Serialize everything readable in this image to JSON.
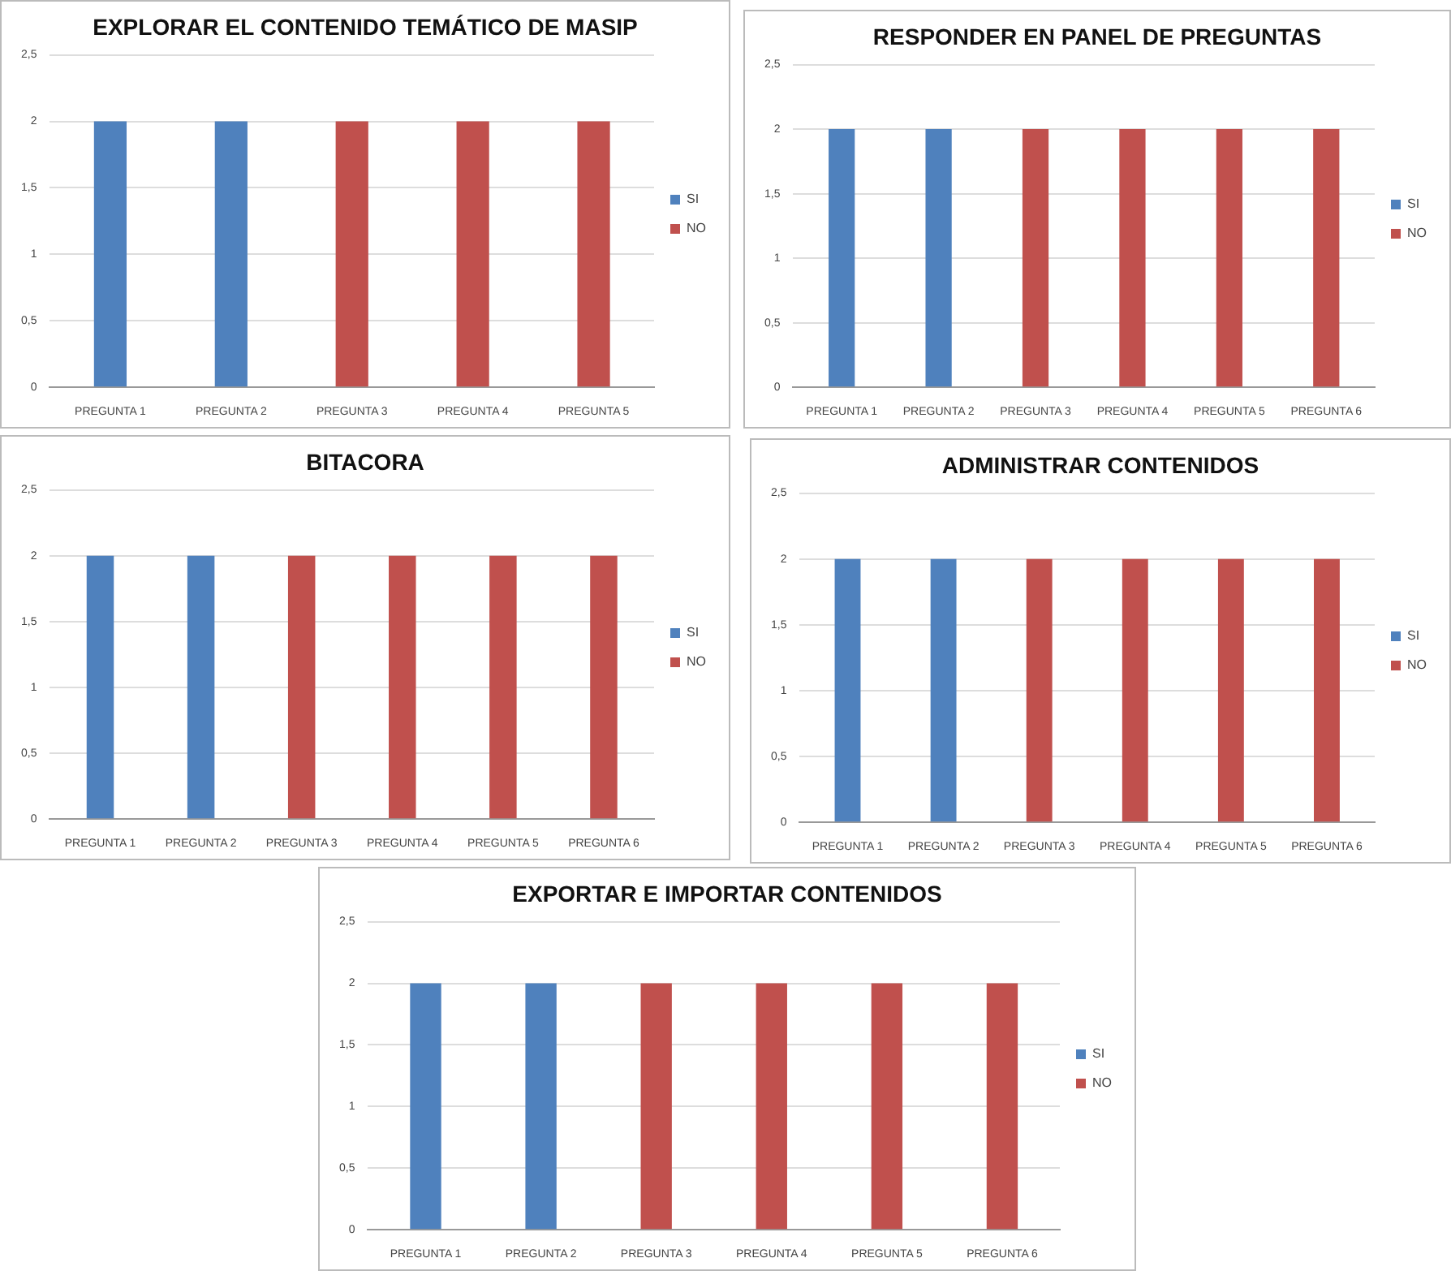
{
  "chart_data": [
    {
      "type": "bar",
      "title": "EXPLORAR EL CONTENIDO TEMÁTICO DE MASIP",
      "categories": [
        "PREGUNTA 1",
        "PREGUNTA 2",
        "PREGUNTA 3",
        "PREGUNTA 4",
        "PREGUNTA 5"
      ],
      "series": [
        {
          "name": "SI",
          "color": "#4f81bd",
          "values": [
            2,
            2,
            null,
            null,
            null
          ]
        },
        {
          "name": "NO",
          "color": "#c0504d",
          "values": [
            null,
            null,
            2,
            2,
            2
          ]
        }
      ],
      "ylim": [
        0,
        2.5
      ],
      "yticks": [
        0,
        {
          "value": 0.5,
          "label": "0,5"
        },
        1,
        {
          "value": 1.5,
          "label": "1,5"
        },
        2,
        {
          "value": 2.5,
          "label": "2,5"
        }
      ],
      "grid": "y",
      "legend": "right"
    },
    {
      "type": "bar",
      "title": "RESPONDER EN PANEL DE PREGUNTAS",
      "categories": [
        "PREGUNTA 1",
        "PREGUNTA 2",
        "PREGUNTA 3",
        "PREGUNTA 4",
        "PREGUNTA 5",
        "PREGUNTA 6"
      ],
      "series": [
        {
          "name": "SI",
          "color": "#4f81bd",
          "values": [
            2,
            2,
            null,
            null,
            null,
            null
          ]
        },
        {
          "name": "NO",
          "color": "#c0504d",
          "values": [
            null,
            null,
            2,
            2,
            2,
            2
          ]
        }
      ],
      "ylim": [
        0,
        2.5
      ],
      "yticks": [
        0,
        {
          "value": 0.5,
          "label": "0,5"
        },
        1,
        {
          "value": 1.5,
          "label": "1,5"
        },
        2,
        {
          "value": 2.5,
          "label": "2,5"
        }
      ],
      "grid": "y",
      "legend": "right"
    },
    {
      "type": "bar",
      "title": "BITACORA",
      "categories": [
        "PREGUNTA 1",
        "PREGUNTA 2",
        "PREGUNTA 3",
        "PREGUNTA 4",
        "PREGUNTA 5",
        "PREGUNTA 6"
      ],
      "series": [
        {
          "name": "SI",
          "color": "#4f81bd",
          "values": [
            2,
            2,
            null,
            null,
            null,
            null
          ]
        },
        {
          "name": "NO",
          "color": "#c0504d",
          "values": [
            null,
            null,
            2,
            2,
            2,
            2
          ]
        }
      ],
      "ylim": [
        0,
        2.5
      ],
      "yticks": [
        0,
        {
          "value": 0.5,
          "label": "0,5"
        },
        1,
        {
          "value": 1.5,
          "label": "1,5"
        },
        2,
        {
          "value": 2.5,
          "label": "2,5"
        }
      ],
      "grid": "y",
      "legend": "right"
    },
    {
      "type": "bar",
      "title": "ADMINISTRAR CONTENIDOS",
      "categories": [
        "PREGUNTA 1",
        "PREGUNTA 2",
        "PREGUNTA 3",
        "PREGUNTA 4",
        "PREGUNTA 5",
        "PREGUNTA 6"
      ],
      "series": [
        {
          "name": "SI",
          "color": "#4f81bd",
          "values": [
            2,
            2,
            null,
            null,
            null,
            null
          ]
        },
        {
          "name": "NO",
          "color": "#c0504d",
          "values": [
            null,
            null,
            2,
            2,
            2,
            2
          ]
        }
      ],
      "ylim": [
        0,
        2.5
      ],
      "yticks": [
        0,
        {
          "value": 0.5,
          "label": "0,5"
        },
        1,
        {
          "value": 1.5,
          "label": "1,5"
        },
        2,
        {
          "value": 2.5,
          "label": "2,5"
        }
      ],
      "grid": "y",
      "legend": "right"
    },
    {
      "type": "bar",
      "title": "EXPORTAR E IMPORTAR CONTENIDOS",
      "categories": [
        "PREGUNTA 1",
        "PREGUNTA 2",
        "PREGUNTA 3",
        "PREGUNTA 4",
        "PREGUNTA 5",
        "PREGUNTA 6"
      ],
      "series": [
        {
          "name": "SI",
          "color": "#4f81bd",
          "values": [
            2,
            2,
            null,
            null,
            null,
            null
          ]
        },
        {
          "name": "NO",
          "color": "#c0504d",
          "values": [
            null,
            null,
            2,
            2,
            2,
            2
          ]
        }
      ],
      "ylim": [
        0,
        2.5
      ],
      "yticks": [
        0,
        {
          "value": 0.5,
          "label": "0,5"
        },
        1,
        {
          "value": 1.5,
          "label": "1,5"
        },
        2,
        {
          "value": 2.5,
          "label": "2,5"
        }
      ],
      "grid": "y",
      "legend": "right"
    }
  ]
}
